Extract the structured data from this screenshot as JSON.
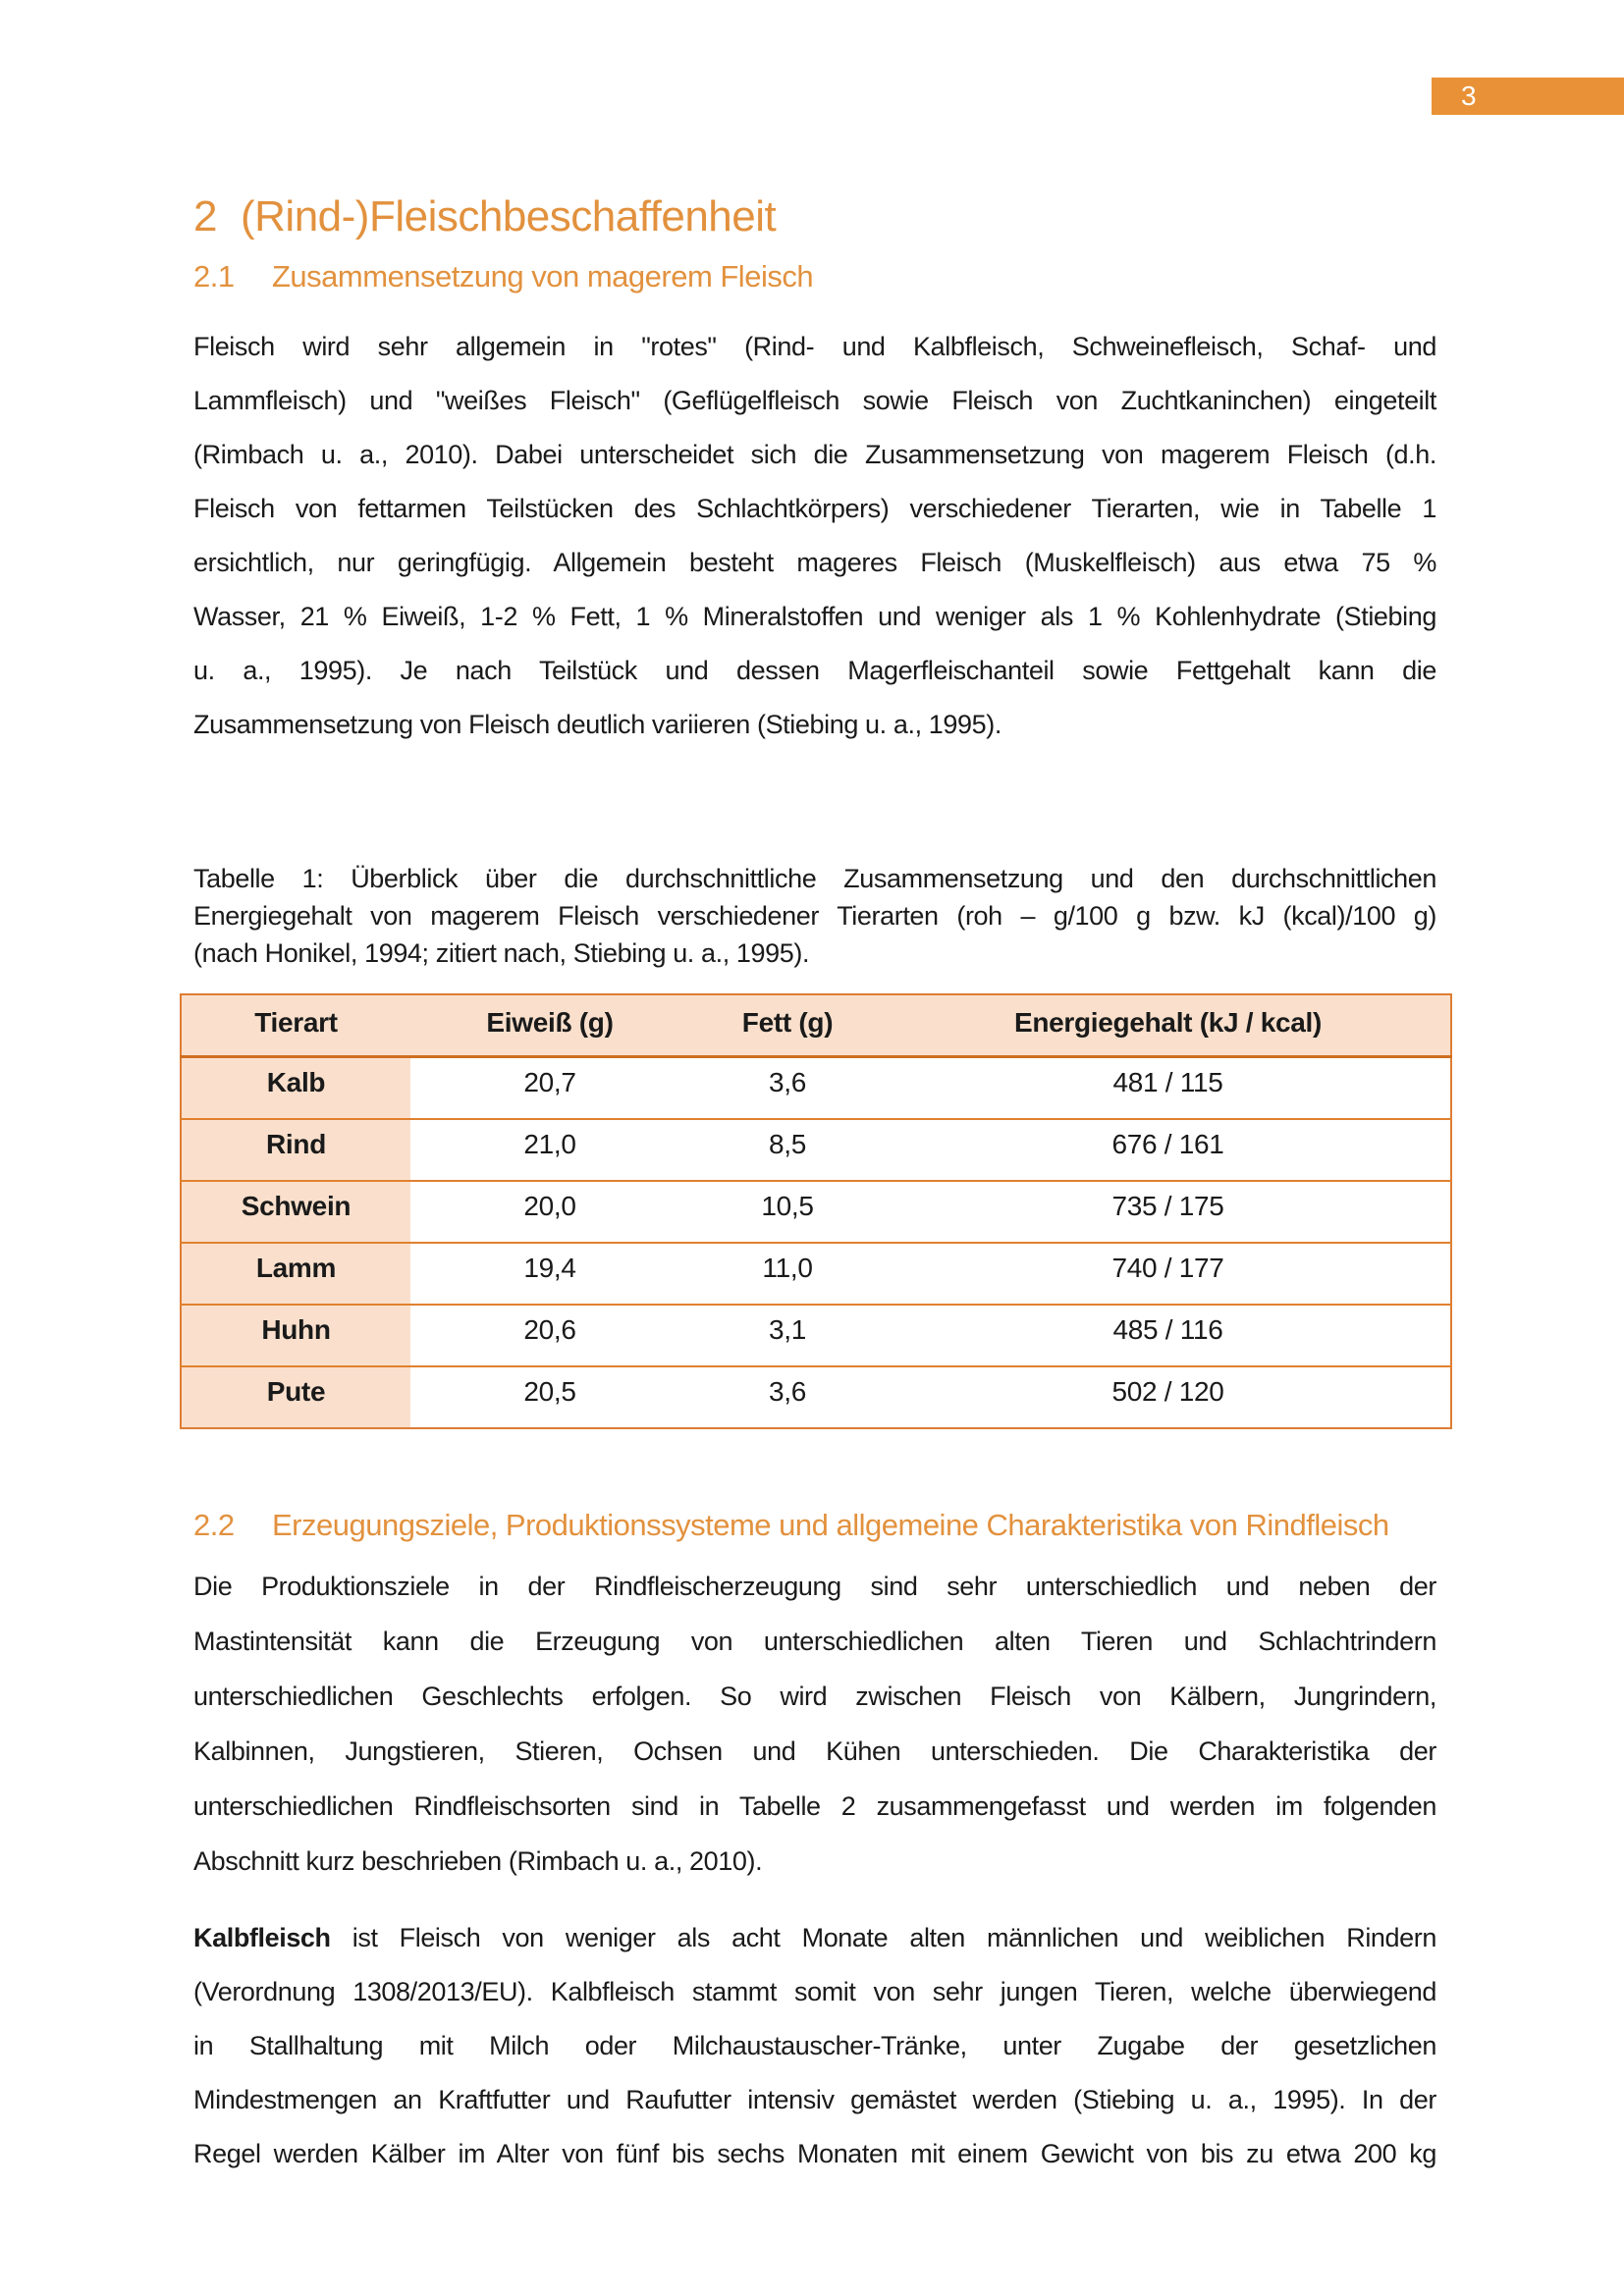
{
  "page": {
    "number": "3"
  },
  "colors": {
    "band_orange": "#E99136",
    "heading_orange": "#E2913E",
    "table_border": "#DE7D33",
    "table_header_rule": "#D06E20",
    "table_shade": "#FAE0CC",
    "body_text": "#1A1A1A"
  },
  "headings": {
    "h1": {
      "number": "2",
      "text": "(Rind-)Fleischbeschaffenheit"
    },
    "h21": {
      "number": "2.1",
      "text": "Zusammensetzung von magerem Fleisch"
    },
    "h22": {
      "number": "2.2",
      "text": "Erzeugungsziele, Produktionssysteme und allgemeine Charakteristika von Rindfleisch"
    }
  },
  "paragraphs": {
    "p1": {
      "justify_last": false,
      "lines": [
        "Fleisch wird sehr allgemein in \"rotes\" (Rind- und Kalbfleisch, Schweinefleisch, Schaf- und",
        "Lammfleisch) und \"weißes Fleisch\" (Geflügelfleisch sowie Fleisch von Zuchtkaninchen) eingeteilt",
        "(Rimbach u. a., 2010). Dabei unterscheidet sich die Zusammensetzung von magerem Fleisch (d.h.",
        "Fleisch von fettarmen Teilstücken des Schlachtkörpers) verschiedener Tierarten, wie in Tabelle 1",
        "ersichtlich, nur geringfügig. Allgemein besteht mageres Fleisch (Muskelfleisch) aus etwa 75 %",
        "Wasser, 21 % Eiweiß, 1-2 % Fett, 1 % Mineralstoffen und weniger als 1 % Kohlenhydrate (Stiebing",
        "u. a., 1995). Je nach Teilstück und dessen Magerfleischanteil sowie Fettgehalt kann die",
        "Zusammensetzung von Fleisch deutlich variieren (Stiebing u. a., 1995)."
      ]
    },
    "caption": {
      "justify_last": false,
      "lines": [
        "Tabelle 1: Überblick über die durchschnittliche Zusammensetzung und den durchschnittlichen",
        "Energiegehalt von magerem Fleisch verschiedener Tierarten (roh – g/100 g bzw. kJ (kcal)/100 g)",
        "(nach Honikel, 1994; zitiert nach, Stiebing u. a., 1995)."
      ]
    },
    "p2": {
      "justify_last": false,
      "lines": [
        "Die Produktionsziele in der Rindfleischerzeugung sind sehr unterschiedlich und neben der",
        "Mastintensität kann die Erzeugung von unterschiedlichen alten Tieren und Schlachtrindern",
        "unterschiedlichen Geschlechts erfolgen. So wird zwischen Fleisch von Kälbern, Jungrindern,",
        "Kalbinnen, Jungstieren, Stieren, Ochsen und Kühen unterschieden. Die Charakteristika der",
        "unterschiedlichen Rindfleischsorten sind in Tabelle 2 zusammengefasst und werden im folgenden",
        "Abschnitt kurz beschrieben (Rimbach u. a., 2010)."
      ]
    },
    "p3": {
      "justify_last": true,
      "lines": [
        {
          "bold": "Kalbfleisch",
          "text": " ist Fleisch von weniger als acht Monate alten männlichen und weiblichen Rindern"
        },
        "(Verordnung 1308/2013/EU). Kalbfleisch stammt somit von sehr jungen Tieren, welche überwiegend",
        "in Stallhaltung mit Milch oder Milchaustauscher-Tränke, unter Zugabe der gesetzlichen",
        "Mindestmengen an Kraftfutter und Raufutter intensiv gemästet werden (Stiebing u. a., 1995). In der",
        "Regel werden Kälber im Alter von fünf bis sechs Monaten mit einem Gewicht von bis zu etwa 200 kg"
      ]
    }
  },
  "table": {
    "headers": [
      "Tierart",
      "Eiweiß (g)",
      "Fett (g)",
      "Energiegehalt (kJ / kcal)"
    ],
    "rows": [
      [
        "Kalb",
        "20,7",
        "3,6",
        "481 / 115"
      ],
      [
        "Rind",
        "21,0",
        "8,5",
        "676 / 161"
      ],
      [
        "Schwein",
        "20,0",
        "10,5",
        "735 / 175"
      ],
      [
        "Lamm",
        "19,4",
        "11,0",
        "740 / 177"
      ],
      [
        "Huhn",
        "20,6",
        "3,1",
        "485 / 116"
      ],
      [
        "Pute",
        "20,5",
        "3,6",
        "502 / 120"
      ]
    ]
  }
}
